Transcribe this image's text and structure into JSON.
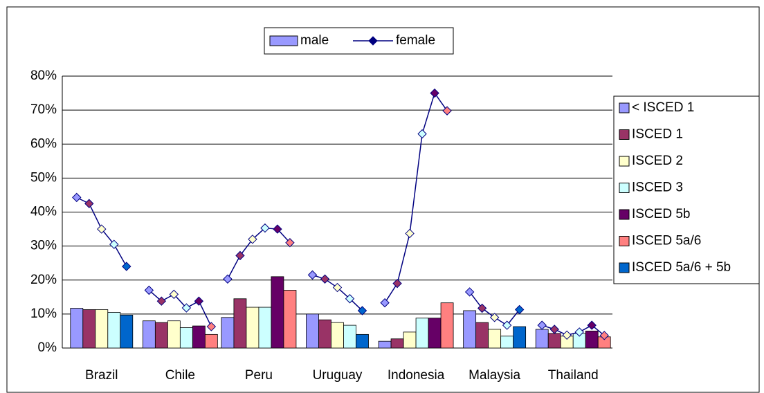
{
  "chart_data": {
    "type": "bar",
    "categories": [
      "Brazil",
      "Chile",
      "Peru",
      "Uruguay",
      "Indonesia",
      "Malaysia",
      "Thailand"
    ],
    "measures": [
      "male",
      "female"
    ],
    "line_color": "#000080",
    "series": [
      {
        "name": "< ISCED 1",
        "color": "#9999ff",
        "values": [
          11.7,
          8,
          9,
          10,
          2,
          11,
          5.5
        ],
        "female_values": [
          44.3,
          17,
          20.3,
          21.5,
          13.3,
          16.5,
          6.7
        ]
      },
      {
        "name": "ISCED 1",
        "color": "#993366",
        "values": [
          11.3,
          7.5,
          14.5,
          8.3,
          2.7,
          7.5,
          4.3
        ],
        "female_values": [
          42.5,
          13.8,
          27.2,
          20.3,
          19,
          11.7,
          5.5
        ]
      },
      {
        "name": "ISCED 2",
        "color": "#ffffcc",
        "values": [
          11.3,
          8,
          12,
          7.5,
          4.7,
          5.5,
          3.5
        ],
        "female_values": [
          35,
          15.8,
          32,
          17.8,
          33.7,
          9,
          3.8
        ]
      },
      {
        "name": "ISCED 3",
        "color": "#ccffff",
        "values": [
          10.5,
          6,
          12,
          6.7,
          8.8,
          3.5,
          4.3
        ],
        "female_values": [
          30.5,
          11.8,
          35.3,
          14.5,
          63,
          6.7,
          4.7
        ]
      },
      {
        "name": "ISCED 5b",
        "color": "#660066",
        "values": [
          null,
          6.5,
          21,
          null,
          8.8,
          null,
          5
        ],
        "female_values": [
          null,
          13.8,
          35,
          null,
          75,
          null,
          6.7
        ]
      },
      {
        "name": "ISCED 5a/6",
        "color": "#ff8080",
        "values": [
          null,
          4,
          17,
          null,
          13.3,
          null,
          3.3
        ],
        "female_values": [
          null,
          6.3,
          31,
          null,
          69.8,
          null,
          3.7
        ]
      },
      {
        "name": "ISCED 5a/6 + 5b",
        "color": "#0066cc",
        "values": [
          9.7,
          null,
          null,
          4,
          null,
          6.3,
          null
        ],
        "female_values": [
          24,
          null,
          null,
          11,
          null,
          11.3,
          null
        ]
      }
    ],
    "ylim": [
      0,
      80
    ],
    "yticks": [
      {
        "value": 0,
        "label": "0%"
      },
      {
        "value": 10,
        "label": "10%"
      },
      {
        "value": 20,
        "label": "20%"
      },
      {
        "value": 30,
        "label": "30%"
      },
      {
        "value": 40,
        "label": "40%"
      },
      {
        "value": 50,
        "label": "50%"
      },
      {
        "value": 60,
        "label": "60%"
      },
      {
        "value": 70,
        "label": "70%"
      },
      {
        "value": 80,
        "label": "80%"
      }
    ],
    "grid": true
  }
}
